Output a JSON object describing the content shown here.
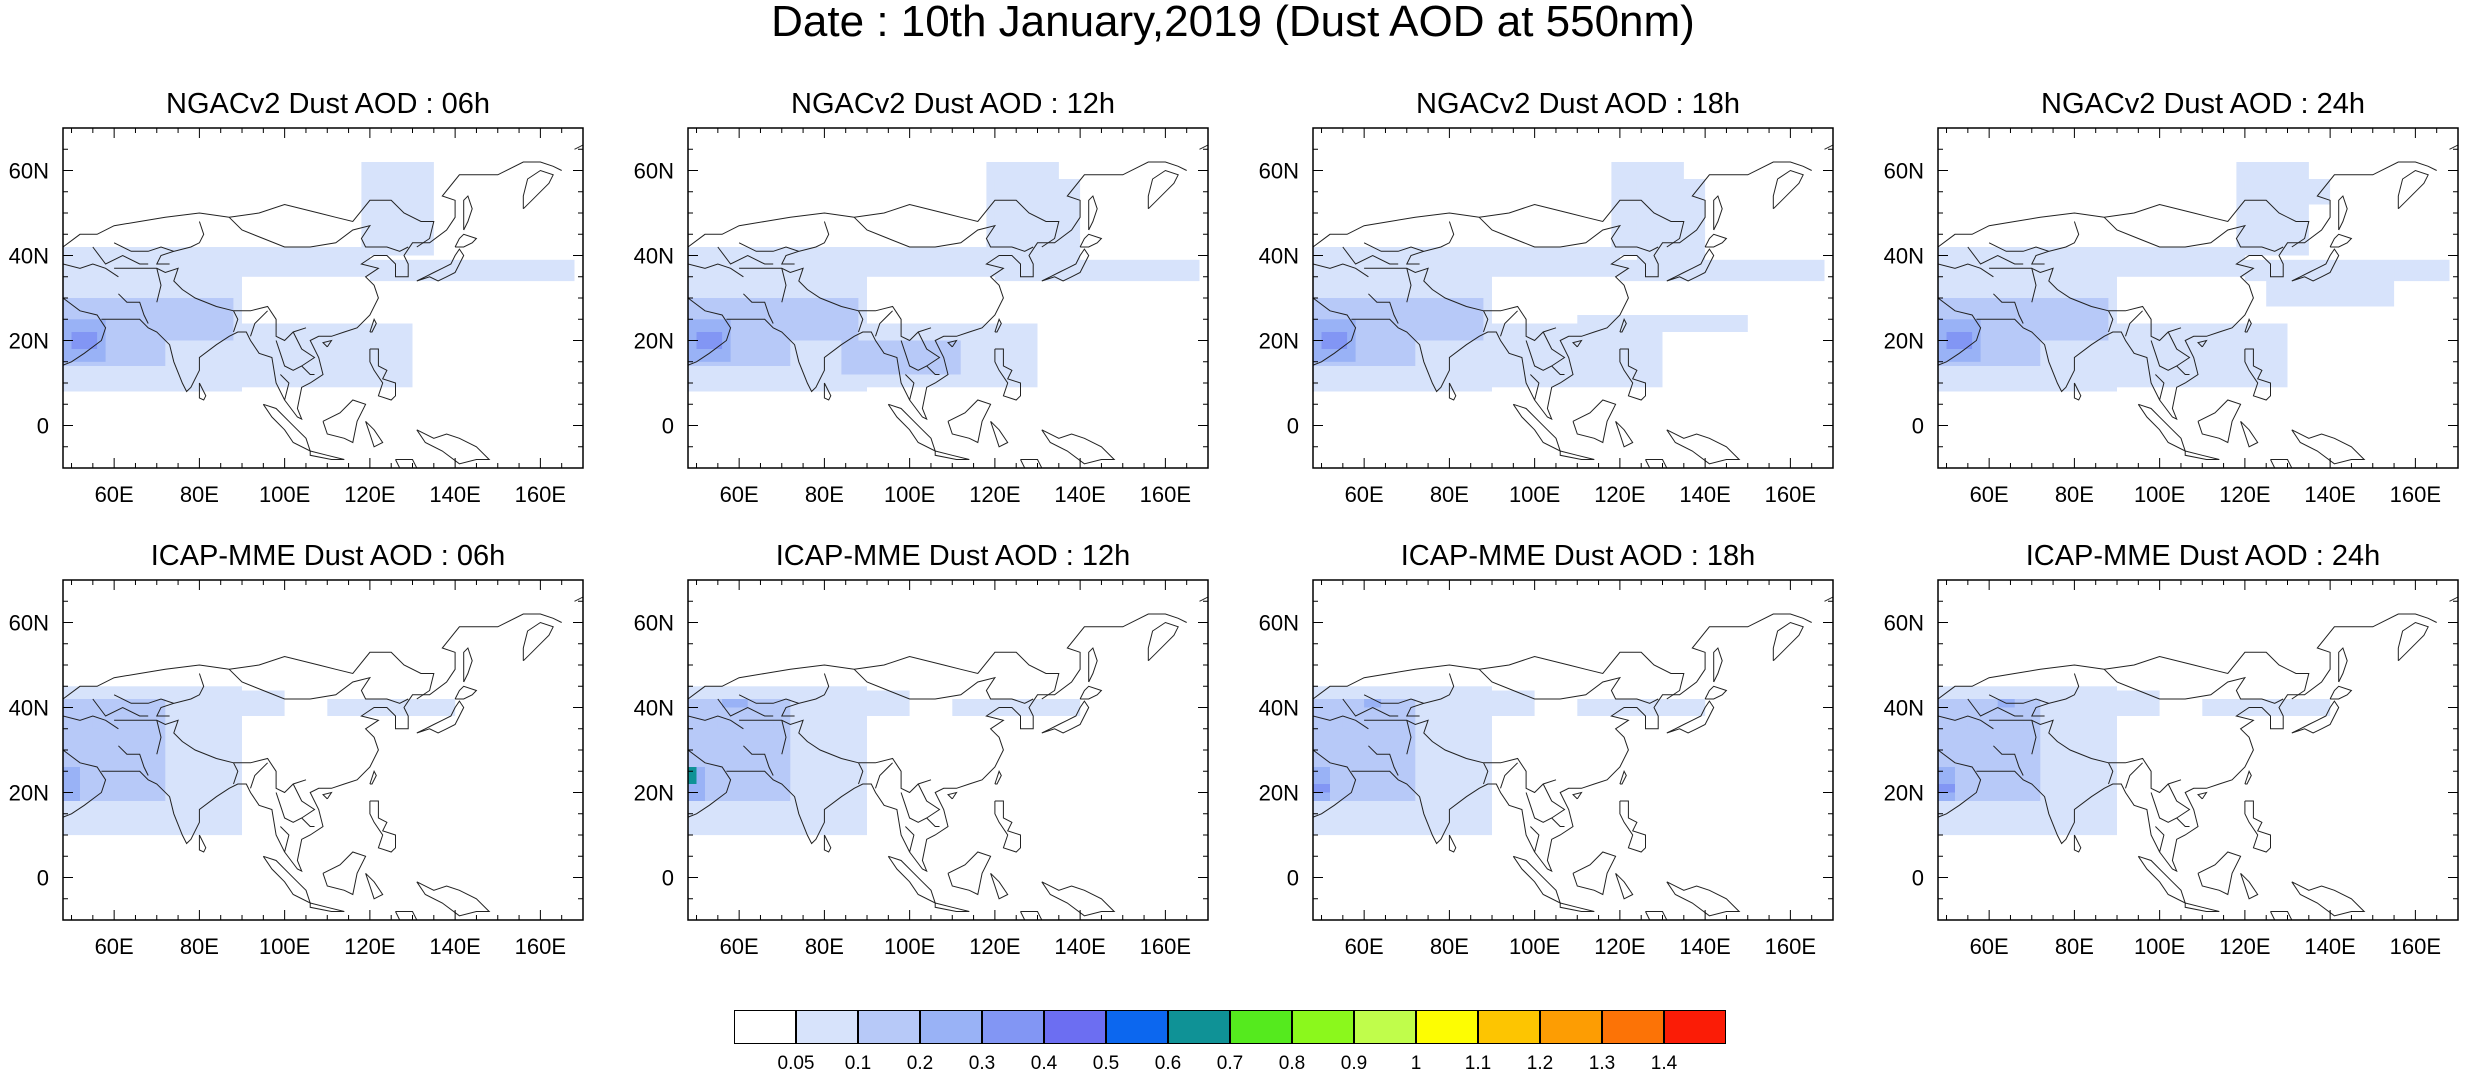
{
  "figure": {
    "title": "Date : 10th January,2019 (Dust AOD at 550nm)"
  },
  "axes": {
    "lon_ticks": [
      "60E",
      "80E",
      "100E",
      "120E",
      "140E",
      "160E"
    ],
    "lat_ticks": [
      "60N",
      "40N",
      "20N",
      "0"
    ],
    "lon_range": [
      48,
      170
    ],
    "lat_range": [
      -10,
      70
    ]
  },
  "panels": [
    {
      "title": "NGACv2 Dust AOD : 06h"
    },
    {
      "title": "NGACv2 Dust AOD : 12h"
    },
    {
      "title": "NGACv2 Dust AOD : 18h"
    },
    {
      "title": "NGACv2 Dust AOD : 24h"
    },
    {
      "title": "ICAP-MME Dust AOD : 06h"
    },
    {
      "title": "ICAP-MME Dust AOD : 12h"
    },
    {
      "title": "ICAP-MME Dust AOD : 18h"
    },
    {
      "title": "ICAP-MME Dust AOD : 24h"
    }
  ],
  "colorbar": {
    "labels": [
      "0.05",
      "0.1",
      "0.2",
      "0.3",
      "0.4",
      "0.5",
      "0.6",
      "0.7",
      "0.8",
      "0.9",
      "1",
      "1.1",
      "1.2",
      "1.3",
      "1.4"
    ],
    "colors": [
      "#ffffff",
      "#d7e3fb",
      "#b7c9f8",
      "#99b2f6",
      "#8296f4",
      "#6c6ef2",
      "#0c67ef",
      "#0f9296",
      "#55ea1e",
      "#8bf81c",
      "#c0fd4b",
      "#fdfd02",
      "#fdc501",
      "#fd9d03",
      "#fc7306",
      "#fb1c06"
    ]
  }
}
